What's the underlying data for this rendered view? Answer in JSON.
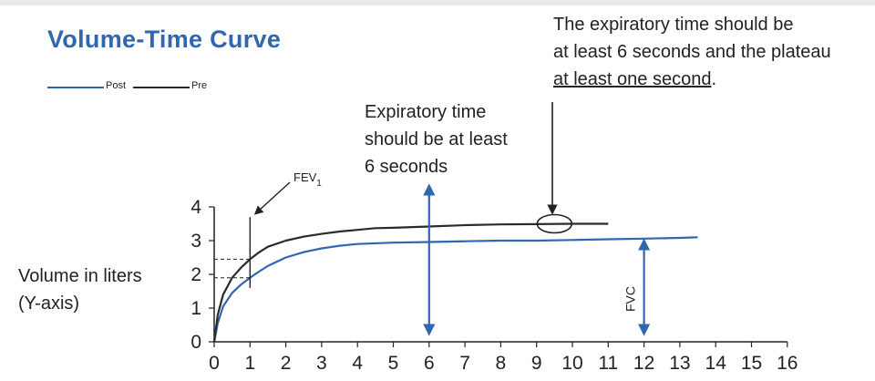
{
  "chart_data": {
    "type": "line",
    "title": "Volume-Time Curve",
    "xlabel": "",
    "ylabel": "Volume in liters\n(Y-axis)",
    "xlim": [
      0,
      16
    ],
    "ylim": [
      0,
      4
    ],
    "x_ticks": [
      "0",
      "1",
      "2",
      "3",
      "4",
      "5",
      "6",
      "7",
      "8",
      "9",
      "10",
      "11",
      "12",
      "13",
      "14",
      "15",
      "16"
    ],
    "y_ticks": [
      "0",
      "1",
      "2",
      "3",
      "4"
    ],
    "grid": false,
    "legend_position": "top-left",
    "series": [
      {
        "name": "Post",
        "color": "#2f68b0",
        "x": [
          0,
          0.1,
          0.25,
          0.5,
          0.75,
          1,
          1.25,
          1.5,
          2,
          2.5,
          3,
          3.5,
          4,
          5,
          6,
          7,
          8,
          9,
          10,
          11,
          12,
          13,
          13.5
        ],
        "y": [
          0,
          0.55,
          1.05,
          1.45,
          1.7,
          1.9,
          2.08,
          2.25,
          2.5,
          2.66,
          2.77,
          2.85,
          2.9,
          2.94,
          2.96,
          2.98,
          3.0,
          3.0,
          3.02,
          3.04,
          3.06,
          3.08,
          3.1
        ]
      },
      {
        "name": "Pre",
        "color": "#2b2b2b",
        "x": [
          0,
          0.1,
          0.25,
          0.5,
          0.75,
          1,
          1.25,
          1.5,
          2,
          2.5,
          3,
          3.5,
          4,
          4.5,
          5,
          6,
          7,
          8,
          9,
          10,
          11
        ],
        "y": [
          0,
          0.8,
          1.4,
          1.9,
          2.2,
          2.45,
          2.65,
          2.82,
          3.0,
          3.12,
          3.2,
          3.27,
          3.32,
          3.37,
          3.38,
          3.42,
          3.46,
          3.48,
          3.49,
          3.5,
          3.5
        ]
      }
    ],
    "annotations": {
      "fev1": {
        "main": "FEV",
        "sub": "1",
        "x": 1,
        "y_pre": 2.45,
        "y_post": 1.9
      },
      "expiratory_marker": {
        "x": 6,
        "label_lines": [
          "Expiratory time",
          "should be at least",
          "6 seconds"
        ]
      },
      "fvc": {
        "label": "FVC",
        "x": 12,
        "y": 3.05
      },
      "plateau": {
        "x": 9.5,
        "y": 3.5,
        "label_lines": [
          "The expiratory time should be",
          "at least 6 seconds and the plateau"
        ],
        "label_underlined": "at least one second",
        "label_tail": "."
      }
    }
  }
}
